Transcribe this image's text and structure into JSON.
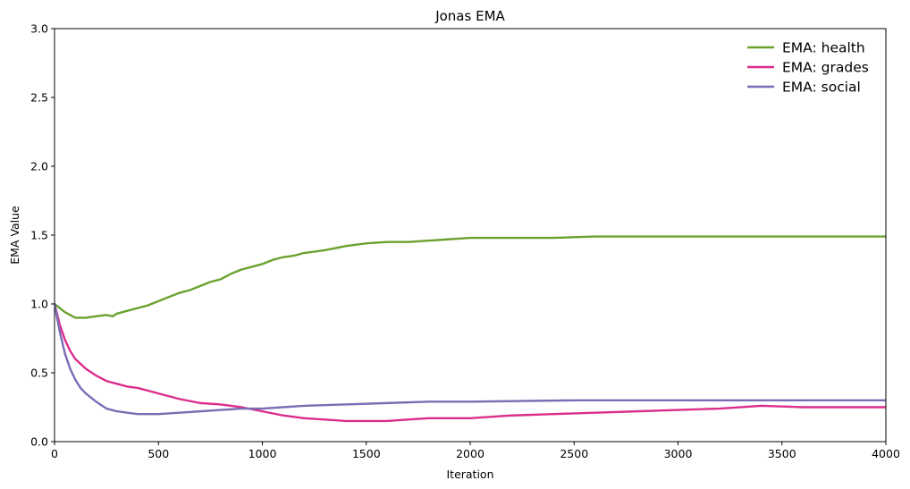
{
  "chart_data": {
    "type": "line",
    "title": "Jonas EMA",
    "xlabel": "Iteration",
    "ylabel": "EMA Value",
    "xlim": [
      0,
      4000
    ],
    "ylim": [
      0,
      3.0
    ],
    "xticks": [
      0,
      500,
      1000,
      1500,
      2000,
      2500,
      3000,
      3500,
      4000
    ],
    "xtick_labels": [
      "0",
      "500",
      "1000",
      "1500",
      "2000",
      "2500",
      "3000",
      "3500",
      "4000"
    ],
    "yticks": [
      0,
      0.5,
      1.0,
      1.5,
      2.0,
      2.5,
      3.0
    ],
    "ytick_labels": [
      "0.0",
      "0.5",
      "1.0",
      "1.5",
      "2.0",
      "2.5",
      "3.0"
    ],
    "grid": false,
    "legend_position": "top-right",
    "series": [
      {
        "name": "EMA: health",
        "color": "#6aa22e",
        "x": [
          0,
          50,
          100,
          150,
          200,
          250,
          280,
          300,
          350,
          400,
          450,
          500,
          550,
          600,
          650,
          700,
          750,
          800,
          850,
          900,
          950,
          1000,
          1050,
          1100,
          1150,
          1200,
          1300,
          1400,
          1500,
          1600,
          1700,
          1800,
          1900,
          2000,
          2200,
          2400,
          2600,
          2800,
          3000,
          3200,
          3400,
          3600,
          3800,
          4000
        ],
        "y": [
          1.0,
          0.94,
          0.9,
          0.9,
          0.91,
          0.92,
          0.91,
          0.93,
          0.95,
          0.97,
          0.99,
          1.02,
          1.05,
          1.08,
          1.1,
          1.13,
          1.16,
          1.18,
          1.22,
          1.25,
          1.27,
          1.29,
          1.32,
          1.34,
          1.35,
          1.37,
          1.39,
          1.42,
          1.44,
          1.45,
          1.45,
          1.46,
          1.47,
          1.48,
          1.48,
          1.48,
          1.49,
          1.49,
          1.49,
          1.49,
          1.49,
          1.49,
          1.49,
          1.49
        ]
      },
      {
        "name": "EMA: grades",
        "color": "#dc2d8c",
        "x": [
          0,
          25,
          50,
          75,
          100,
          150,
          200,
          250,
          300,
          350,
          400,
          450,
          500,
          600,
          700,
          800,
          900,
          1000,
          1100,
          1200,
          1300,
          1400,
          1500,
          1600,
          1700,
          1800,
          2000,
          2200,
          2400,
          2600,
          2800,
          3000,
          3200,
          3400,
          3600,
          3800,
          4000
        ],
        "y": [
          1.0,
          0.85,
          0.74,
          0.66,
          0.6,
          0.53,
          0.48,
          0.44,
          0.42,
          0.4,
          0.39,
          0.37,
          0.35,
          0.31,
          0.28,
          0.27,
          0.25,
          0.22,
          0.19,
          0.17,
          0.16,
          0.15,
          0.15,
          0.15,
          0.16,
          0.17,
          0.17,
          0.19,
          0.2,
          0.21,
          0.22,
          0.23,
          0.24,
          0.26,
          0.25,
          0.25,
          0.25
        ]
      },
      {
        "name": "EMA: social",
        "color": "#7b6db5",
        "x": [
          0,
          25,
          50,
          75,
          100,
          125,
          150,
          200,
          250,
          300,
          350,
          400,
          450,
          500,
          600,
          700,
          800,
          900,
          1000,
          1100,
          1200,
          1400,
          1600,
          1800,
          2000,
          2500,
          3000,
          3500,
          4000
        ],
        "y": [
          1.0,
          0.8,
          0.64,
          0.53,
          0.45,
          0.39,
          0.35,
          0.29,
          0.24,
          0.22,
          0.21,
          0.2,
          0.2,
          0.2,
          0.21,
          0.22,
          0.23,
          0.24,
          0.24,
          0.25,
          0.26,
          0.27,
          0.28,
          0.29,
          0.29,
          0.3,
          0.3,
          0.3,
          0.3
        ]
      }
    ]
  }
}
